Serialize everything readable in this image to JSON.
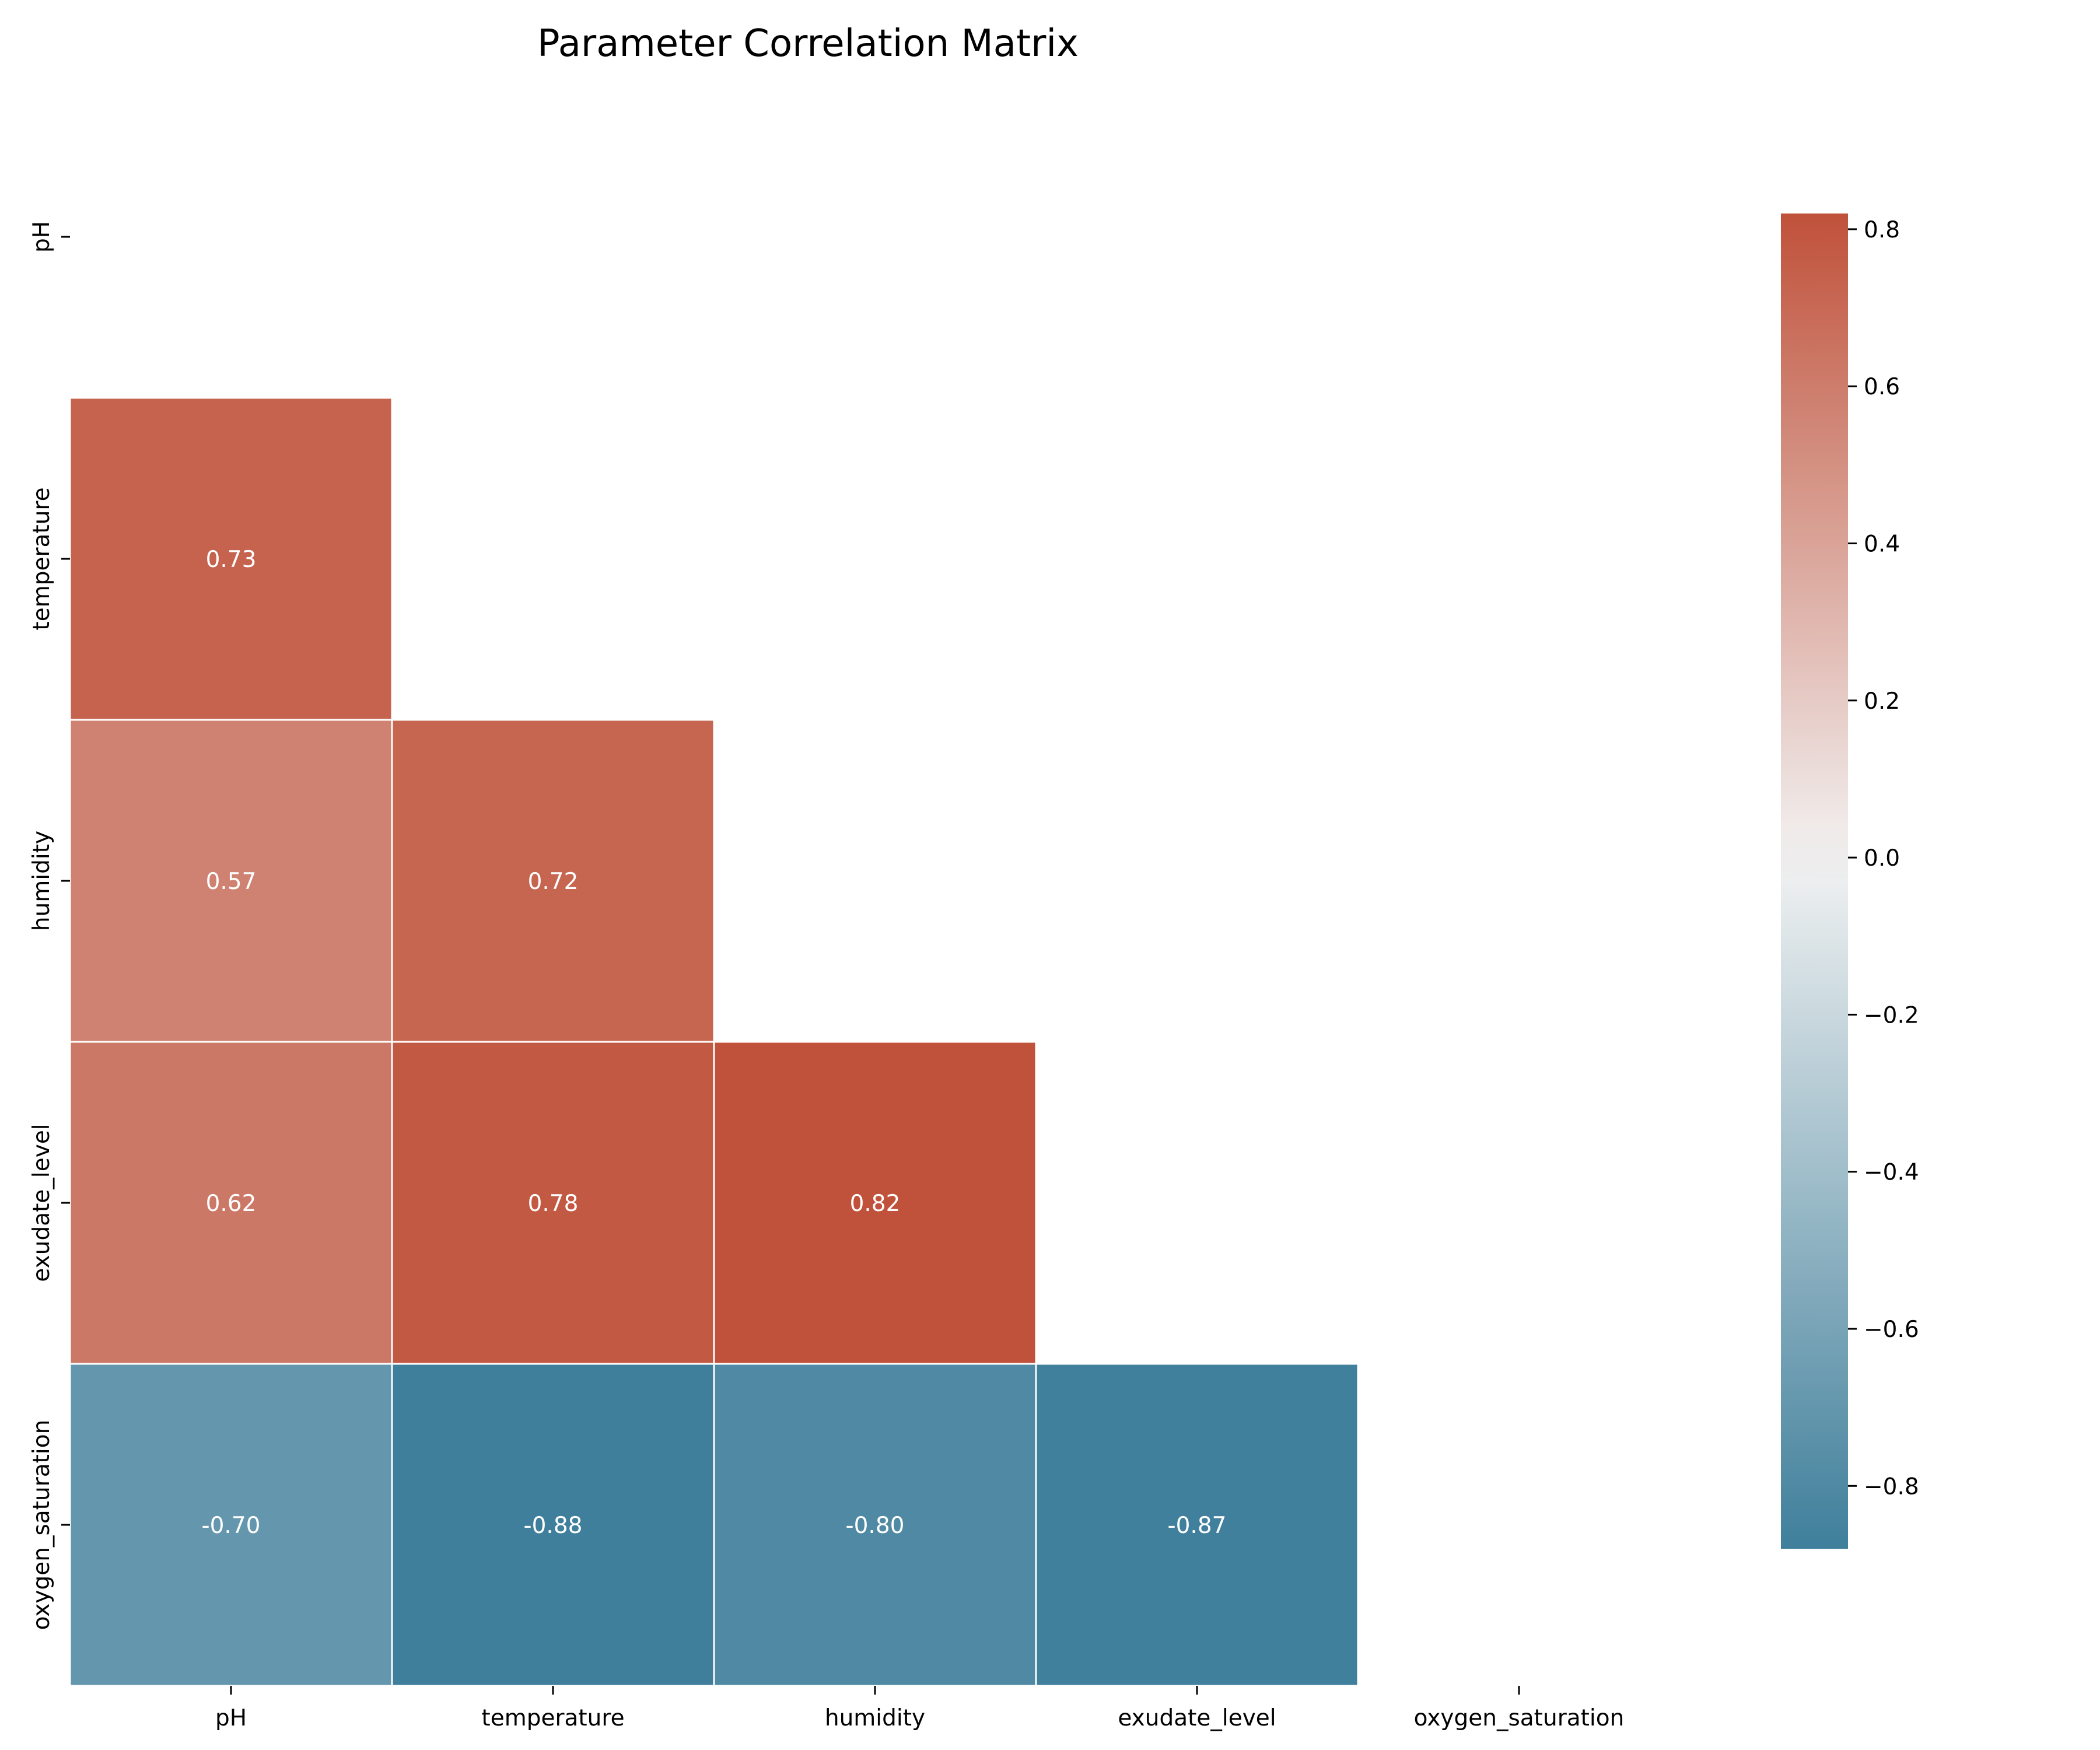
{
  "chart_data": {
    "type": "heatmap",
    "title": "Parameter Correlation Matrix",
    "variables": [
      "pH",
      "temperature",
      "humidity",
      "exudate_level",
      "oxygen_saturation"
    ],
    "mask": "upper-triangle-including-diagonal",
    "cells": [
      {
        "row": "temperature",
        "col": "pH",
        "value": 0.73,
        "label": "0.73"
      },
      {
        "row": "humidity",
        "col": "pH",
        "value": 0.57,
        "label": "0.57"
      },
      {
        "row": "humidity",
        "col": "temperature",
        "value": 0.72,
        "label": "0.72"
      },
      {
        "row": "exudate_level",
        "col": "pH",
        "value": 0.62,
        "label": "0.62"
      },
      {
        "row": "exudate_level",
        "col": "temperature",
        "value": 0.78,
        "label": "0.78"
      },
      {
        "row": "exudate_level",
        "col": "humidity",
        "value": 0.82,
        "label": "0.82"
      },
      {
        "row": "oxygen_saturation",
        "col": "pH",
        "value": -0.7,
        "label": "-0.70"
      },
      {
        "row": "oxygen_saturation",
        "col": "temperature",
        "value": -0.88,
        "label": "-0.88"
      },
      {
        "row": "oxygen_saturation",
        "col": "humidity",
        "value": -0.8,
        "label": "-0.80"
      },
      {
        "row": "oxygen_saturation",
        "col": "exudate_level",
        "value": -0.87,
        "label": "-0.87"
      }
    ],
    "colorbar": {
      "range": [
        -0.88,
        0.82
      ],
      "ticks": [
        0.8,
        0.6,
        0.4,
        0.2,
        0.0,
        -0.2,
        -0.4,
        -0.6,
        -0.8
      ],
      "tick_labels": [
        "0.8",
        "0.6",
        "0.4",
        "0.2",
        "0.0",
        "−0.2",
        "−0.4",
        "−0.6",
        "−0.8"
      ],
      "colors": {
        "negative": "#3f7f9b",
        "neutral": "#f2f2f2",
        "positive": "#c0513a"
      }
    }
  }
}
